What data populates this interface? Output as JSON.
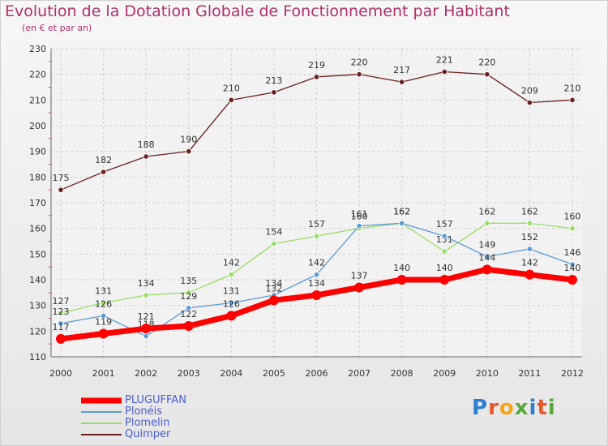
{
  "title": "Evolution de la Dotation Globale de Fonctionnement par Habitant",
  "subtitle": "(en € et par an)",
  "logo": {
    "text": "Proxiti",
    "colors": [
      "#2e7fd0",
      "#e8562a",
      "#f2a51a",
      "#5aa83c",
      "#2e7fd0",
      "#e8562a",
      "#5aa83c"
    ]
  },
  "chart_data": {
    "type": "line",
    "title": "Evolution de la Dotation Globale de Fonctionnement par Habitant",
    "subtitle": "(en € et par an)",
    "xlabel": "",
    "ylabel": "",
    "ylim": [
      110,
      230
    ],
    "yticks": [
      110,
      120,
      130,
      140,
      150,
      160,
      170,
      180,
      190,
      200,
      210,
      220,
      230
    ],
    "categories": [
      "2000",
      "2001",
      "2002",
      "2003",
      "2004",
      "2005",
      "2006",
      "2007",
      "2008",
      "2009",
      "2010",
      "2011",
      "2012"
    ],
    "grid": true,
    "legend_position": "bottom-left",
    "series": [
      {
        "name": "Quimper",
        "color": "#6b1f1f",
        "values": [
          175,
          182,
          188,
          190,
          210,
          213,
          219,
          220,
          217,
          221,
          220,
          209,
          210
        ]
      },
      {
        "name": "Plomelin",
        "color": "#99dd66",
        "values": [
          127,
          131,
          134,
          135,
          142,
          154,
          157,
          160,
          162,
          151,
          162,
          162,
          160
        ]
      },
      {
        "name": "Plonéis",
        "color": "#5b9bd5",
        "values": [
          123,
          126,
          118,
          129,
          131,
          134,
          142,
          161,
          162,
          157,
          149,
          152,
          146
        ]
      },
      {
        "name": "PLUGUFFAN",
        "color": "#ff0000",
        "values": [
          117,
          119,
          121,
          122,
          126,
          132,
          134,
          137,
          140,
          140,
          144,
          142,
          140
        ]
      }
    ],
    "legend": [
      "PLUGUFFAN",
      "Plonéis",
      "Plomelin",
      "Quimper"
    ]
  }
}
